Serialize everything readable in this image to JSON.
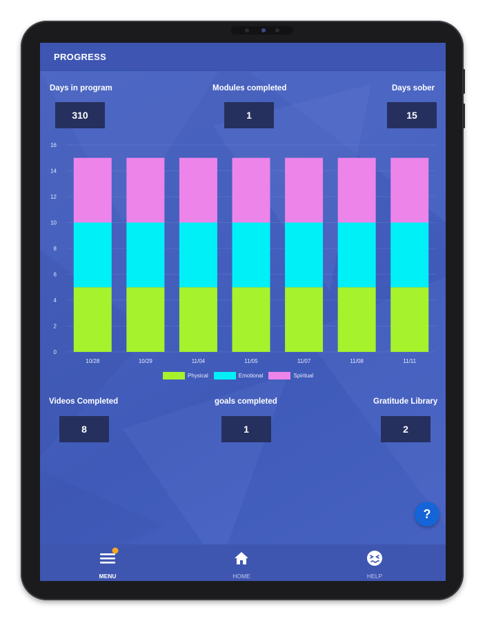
{
  "header": {
    "title": "PROGRESS"
  },
  "stats_top": [
    {
      "label": "Days in program",
      "value": "310"
    },
    {
      "label": "Modules completed",
      "value": "1"
    },
    {
      "label": "Days sober",
      "value": "15"
    }
  ],
  "chart_data": {
    "type": "bar",
    "stacked": true,
    "categories": [
      "10/28",
      "10/29",
      "11/04",
      "11/05",
      "11/07",
      "11/08",
      "11/11"
    ],
    "series": [
      {
        "name": "Physical",
        "color": "#a6f22c",
        "values": [
          5,
          5,
          5,
          5,
          5,
          5,
          5
        ]
      },
      {
        "name": "Emotional",
        "color": "#00f0f8",
        "values": [
          5,
          5,
          5,
          5,
          5,
          5,
          5
        ]
      },
      {
        "name": "Spiritual",
        "color": "#ec84ea",
        "values": [
          5,
          5,
          5,
          5,
          5,
          5,
          5
        ]
      }
    ],
    "ylim": [
      0,
      16
    ],
    "yticks": [
      0,
      2,
      4,
      6,
      8,
      10,
      12,
      14,
      16
    ],
    "grid": true,
    "legend": "bottom"
  },
  "stats_bottom": [
    {
      "label": "Videos Completed",
      "value": "8"
    },
    {
      "label": "goals completed",
      "value": "1"
    },
    {
      "label": "Gratitude Library",
      "value": "2"
    }
  ],
  "help_fab": {
    "label": "?"
  },
  "nav": {
    "menu": {
      "label": "MENU",
      "icon": "hamburger-menu-icon",
      "badge_color": "#f5a623"
    },
    "home": {
      "label": "HOME",
      "icon": "home-icon"
    },
    "help": {
      "label": "HELP",
      "icon": "confused-face-icon"
    }
  }
}
